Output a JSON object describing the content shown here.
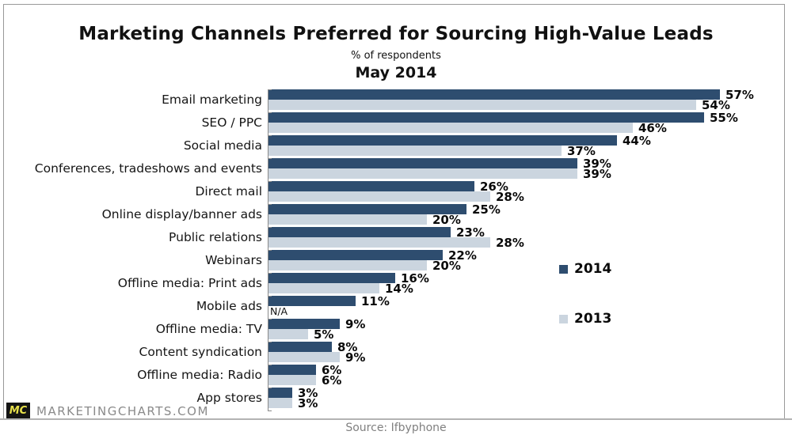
{
  "header": {
    "title": "Marketing Channels Preferred for Sourcing High-Value Leads",
    "subtitle": "% of respondents",
    "period": "May 2014"
  },
  "chart_data": {
    "type": "bar",
    "orientation": "horizontal",
    "title": "Marketing Channels Preferred for Sourcing High-Value Leads",
    "subtitle": "% of respondents",
    "period_label": "May 2014",
    "value_suffix": "%",
    "xlim": [
      0,
      60
    ],
    "grid": false,
    "legend_position": "right-middle",
    "categories": [
      "Email marketing",
      "SEO / PPC",
      "Social media",
      "Conferences, tradeshows and events",
      "Direct mail",
      "Online display/banner ads",
      "Public relations",
      "Webinars",
      "Offline media: Print ads",
      "Mobile ads",
      "Offline media: TV",
      "Content syndication",
      "Offline media: Radio",
      "App stores"
    ],
    "series": [
      {
        "name": "2014",
        "color": "#2E4D6F",
        "values": [
          57,
          55,
          44,
          39,
          26,
          25,
          23,
          22,
          16,
          11,
          9,
          8,
          6,
          3
        ]
      },
      {
        "name": "2013",
        "color": "#CBD5DF",
        "values": [
          54,
          46,
          37,
          39,
          28,
          20,
          28,
          20,
          14,
          null,
          5,
          9,
          6,
          3
        ]
      }
    ],
    "null_label": "N/A"
  },
  "legend": {
    "items": [
      {
        "label": "2014",
        "color": "#2E4D6F"
      },
      {
        "label": "2013",
        "color": "#CBD5DF"
      }
    ]
  },
  "footer": {
    "logo_text": "MC",
    "brand": "MARKETINGCHARTS.COM",
    "source": "Source: Ifbyphone"
  },
  "colors": {
    "bar_2014": "#2E4D6F",
    "bar_2013": "#CBD5DF",
    "axis": "#8A8A8A",
    "frame_border": "#999999",
    "bottom_line": "#B3B3B3",
    "logo_bg": "#141414",
    "logo_text": "#E8E14B",
    "muted_text": "#8A8A8A"
  }
}
